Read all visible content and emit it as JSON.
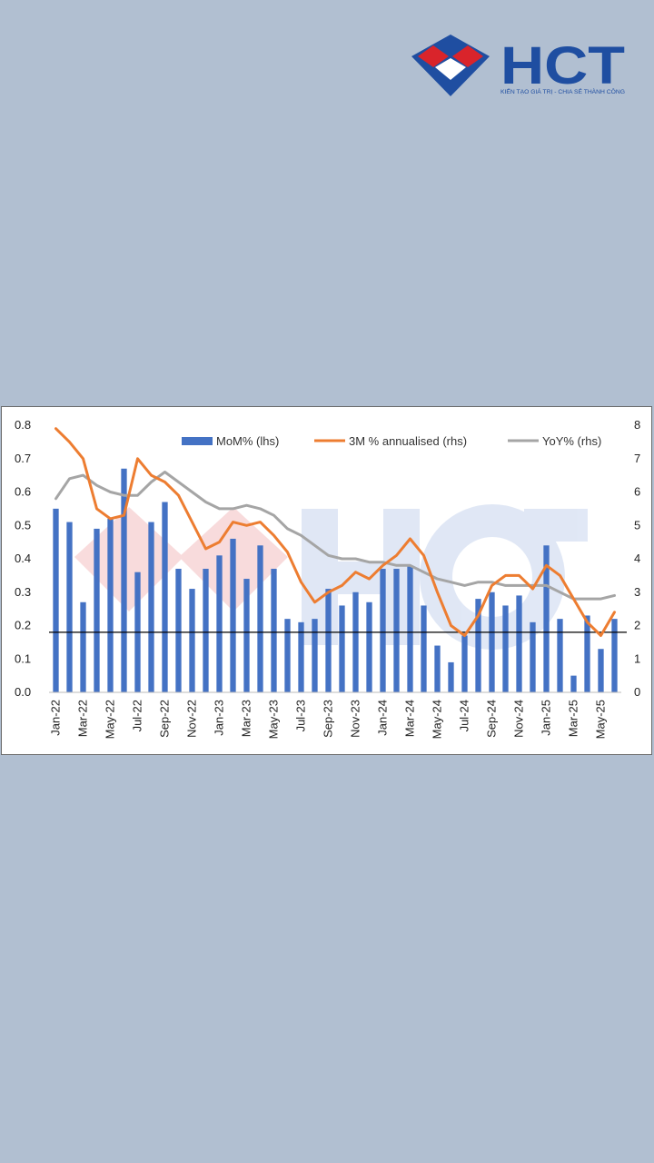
{
  "brand": {
    "name": "HCT",
    "tagline": "KIẾN TẠO GIÁ TRỊ - CHIA SẺ THÀNH CÔNG",
    "colors": {
      "blue": "#1f4ea1",
      "red": "#d9242b"
    }
  },
  "chart_data": {
    "type": "bar",
    "title": "",
    "xlabel": "",
    "ylabel": "",
    "ylim": [
      0,
      0.8
    ],
    "y2lim": [
      0,
      8
    ],
    "y_ticks": [
      "0.0",
      "0.1",
      "0.2",
      "0.3",
      "0.4",
      "0.5",
      "0.6",
      "0.7",
      "0.8"
    ],
    "y2_ticks": [
      "0",
      "1",
      "2",
      "3",
      "4",
      "5",
      "6",
      "7",
      "8"
    ],
    "reference_line_y": 0.18,
    "grid": false,
    "legend_position": "top",
    "x_tick_labels": [
      "Jan-22",
      "Mar-22",
      "May-22",
      "Jul-22",
      "Sep-22",
      "Nov-22",
      "Jan-23",
      "Mar-23",
      "May-23",
      "Jul-23",
      "Sep-23",
      "Nov-23",
      "Jan-24",
      "Mar-24",
      "May-24",
      "Jul-24",
      "Sep-24",
      "Nov-24",
      "Jan-25",
      "Mar-25",
      "May-25"
    ],
    "categories": [
      "Jan-22",
      "Feb-22",
      "Mar-22",
      "Apr-22",
      "May-22",
      "Jun-22",
      "Jul-22",
      "Aug-22",
      "Sep-22",
      "Oct-22",
      "Nov-22",
      "Dec-22",
      "Jan-23",
      "Feb-23",
      "Mar-23",
      "Apr-23",
      "May-23",
      "Jun-23",
      "Jul-23",
      "Aug-23",
      "Sep-23",
      "Oct-23",
      "Nov-23",
      "Dec-23",
      "Jan-24",
      "Feb-24",
      "Mar-24",
      "Apr-24",
      "May-24",
      "Jun-24",
      "Jul-24",
      "Aug-24",
      "Sep-24",
      "Oct-24",
      "Nov-24",
      "Dec-24",
      "Jan-25",
      "Feb-25",
      "Mar-25",
      "Apr-25",
      "May-25",
      "Jun-25"
    ],
    "series": [
      {
        "name": "MoM% (lhs)",
        "type": "bar",
        "axis": "left",
        "color": "#4472c4",
        "values": [
          0.55,
          0.51,
          0.27,
          0.49,
          0.52,
          0.67,
          0.36,
          0.51,
          0.57,
          0.37,
          0.31,
          0.37,
          0.41,
          0.46,
          0.34,
          0.44,
          0.37,
          0.22,
          0.21,
          0.22,
          0.31,
          0.26,
          0.3,
          0.27,
          0.37,
          0.37,
          0.38,
          0.26,
          0.14,
          0.09,
          0.17,
          0.28,
          0.3,
          0.26,
          0.29,
          0.21,
          0.44,
          0.22,
          0.05,
          0.23,
          0.13,
          0.22
        ]
      },
      {
        "name": "3M % annualised (rhs)",
        "type": "line",
        "axis": "right",
        "color": "#ed7d31",
        "values": [
          7.9,
          7.5,
          7.0,
          5.5,
          5.2,
          5.3,
          7.0,
          6.5,
          6.3,
          5.9,
          5.1,
          4.3,
          4.5,
          5.1,
          5.0,
          5.1,
          4.7,
          4.2,
          3.3,
          2.7,
          3.0,
          3.2,
          3.6,
          3.4,
          3.8,
          4.1,
          4.6,
          4.1,
          3.0,
          2.0,
          1.7,
          2.3,
          3.2,
          3.5,
          3.5,
          3.1,
          3.8,
          3.5,
          2.8,
          2.1,
          1.7,
          2.4
        ]
      },
      {
        "name": "YoY% (rhs)",
        "type": "line",
        "axis": "right",
        "color": "#a5a5a5",
        "values": [
          5.8,
          6.4,
          6.5,
          6.2,
          6.0,
          5.9,
          5.9,
          6.3,
          6.6,
          6.3,
          6.0,
          5.7,
          5.5,
          5.5,
          5.6,
          5.5,
          5.3,
          4.9,
          4.7,
          4.4,
          4.1,
          4.0,
          4.0,
          3.9,
          3.9,
          3.8,
          3.8,
          3.6,
          3.4,
          3.3,
          3.2,
          3.3,
          3.3,
          3.2,
          3.2,
          3.2,
          3.2,
          3.0,
          2.8,
          2.8,
          2.8,
          2.9
        ]
      }
    ]
  }
}
